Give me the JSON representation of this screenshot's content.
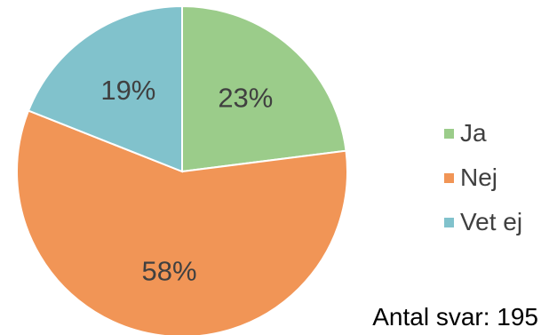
{
  "chart_data": {
    "type": "pie",
    "categories": [
      "Ja",
      "Nej",
      "Vet ej"
    ],
    "values": [
      23,
      58,
      19
    ],
    "value_labels": [
      "23%",
      "58%",
      "19%"
    ],
    "colors": [
      "#9BCC8A",
      "#F19556",
      "#81C2CC"
    ],
    "legend_position": "right",
    "start": "top, clockwise"
  },
  "note": "Antal svar: 195"
}
